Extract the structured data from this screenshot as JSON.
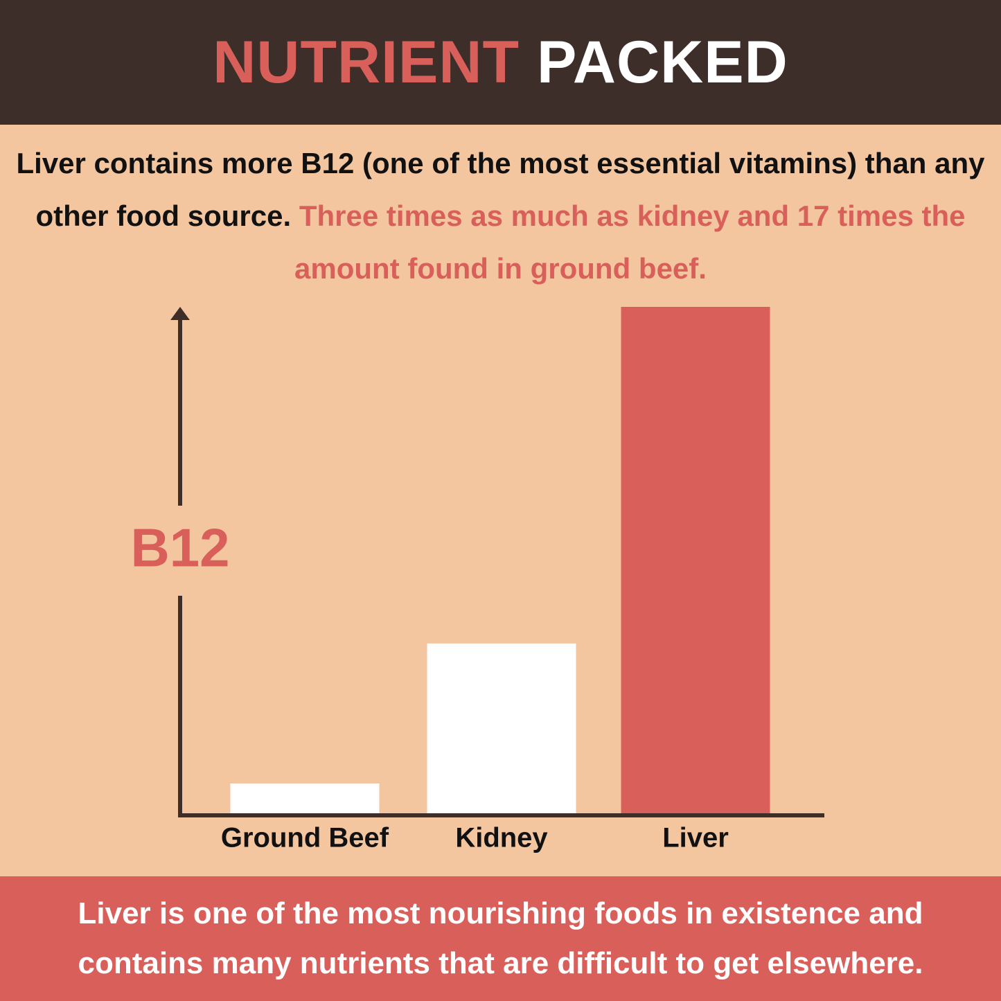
{
  "chart_data": {
    "type": "bar",
    "title": "NUTRIENT",
    "title_highlight": "PACKED",
    "subtitle": "Liver contains more B12 (one of the most essential vitamins) than any other food source.",
    "subtitle_highlight": "Three times as much as kidney and 17 times the amount found in ground beef.",
    "ylabel": "B12",
    "categories": [
      "Ground Beef",
      "Kidney",
      "Liver"
    ],
    "values": [
      1,
      5.7,
      17
    ],
    "colors": [
      "#ffffff",
      "#ffffff",
      "#d9605a"
    ],
    "ylim": [
      0,
      17
    ],
    "footer": "Liver is one of the most nourishing foods in existence and contains many nutrients that are difficult to get elsewhere."
  }
}
